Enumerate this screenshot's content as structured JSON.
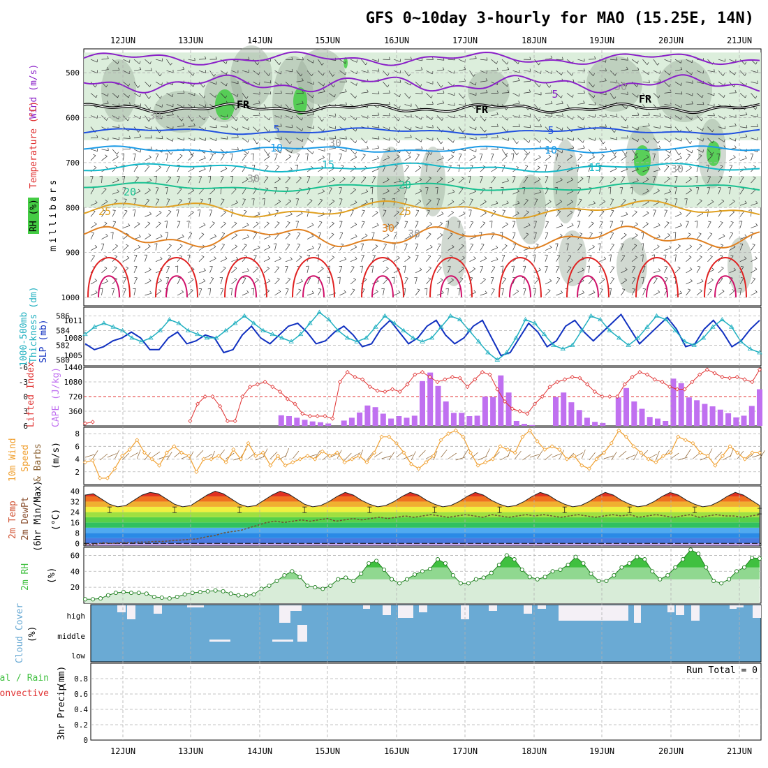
{
  "title": "GFS 0~10day 3-hourly for MAO (15.25E, 14N)",
  "dates": [
    "12JUN",
    "13JUN",
    "14JUN",
    "15JUN",
    "16JUN",
    "17JUN",
    "18JUN",
    "19JUN",
    "20JUN",
    "21JUN"
  ],
  "colors": {
    "grid": "#b0b0b0",
    "rh_fill": "#d8ecd8",
    "rh_dark": "#9aaa9a",
    "rh_green": "#44cc44",
    "t_purple": "#8a20c8",
    "t_blue5": "#2050e0",
    "t_blue10": "#1a9ae6",
    "t_cyan15": "#12b8c8",
    "t_teal20": "#18c090",
    "t_orange25": "#e0a020",
    "t_orange30": "#e08020",
    "t_red35": "#e02020",
    "slp": "#1030c0",
    "thickness": "#20b0c0",
    "lifted": "#e03030",
    "cape": "#c070f0",
    "wind10": "#f0a030",
    "cloud": "#6aaad4",
    "cloud_clear": "#f4f0f6",
    "rh2m": "#40c040"
  },
  "panels": {
    "upper": {
      "yaxis_label": "millibars",
      "ticks": [
        "500",
        "600",
        "700",
        "800",
        "900",
        "1000"
      ],
      "leg_wind": "Wind (m/s)",
      "leg_temp": "Temperature (°C)",
      "leg_rh": "RH (%)"
    },
    "slp": {
      "label_a": "Thickness (dm)",
      "label_b": "1000-500mb",
      "label_c": "SLP (mb)",
      "left_ticks": [
        "586",
        "584",
        "582",
        "580"
      ],
      "right_ticks": [
        "1011",
        "1008",
        "1005"
      ]
    },
    "cape": {
      "label_a": "Lifted Index",
      "label_b": "CAPE (J/kg)",
      "left_ticks": [
        "-6",
        "-3",
        "0",
        "3",
        "6"
      ],
      "right_ticks": [
        "1440",
        "1080",
        "720",
        "360"
      ]
    },
    "wind10": {
      "label_a": "10m Wind",
      "label_b": "Speed",
      "label_c": "& Barbs",
      "unit": "(m/s)",
      "ticks": [
        "8",
        "6",
        "4",
        "2"
      ]
    },
    "temp2m": {
      "label_a": "2m Temp",
      "label_b": "2m DewPt",
      "label_c": "(6hr Min/Max)",
      "unit": "(°C)",
      "ticks": [
        "40",
        "32",
        "24",
        "16",
        "8",
        "0"
      ]
    },
    "rh2m": {
      "label_a": "2m RH",
      "unit": "(%)",
      "ticks": [
        "60",
        "40",
        "20"
      ]
    },
    "cloud": {
      "label_a": "Cloud Cover",
      "unit": "(%)",
      "ticks": [
        "high",
        "middle",
        "low"
      ]
    },
    "precip": {
      "label_a": "3hr Precip",
      "unit": "(mm)",
      "label_total": "Total / Rain",
      "label_conv": "Convective",
      "run_total": "Run Total = 0",
      "ticks": [
        "0.8",
        "0.6",
        "0.4",
        "0.2",
        "0"
      ]
    }
  },
  "isotherm_labels": [
    {
      "text": "FR",
      "color": "#000000"
    },
    {
      "text": "FR",
      "color": "#000000"
    },
    {
      "text": "FR",
      "color": "#000000"
    },
    {
      "text": "5",
      "color": "#8a20c8"
    },
    {
      "text": "5",
      "color": "#2050e0"
    },
    {
      "text": "5",
      "color": "#2050e0"
    },
    {
      "text": "10",
      "color": "#1a9ae6"
    },
    {
      "text": "10",
      "color": "#1a9ae6"
    },
    {
      "text": "15",
      "color": "#12b8c8"
    },
    {
      "text": "15",
      "color": "#12b8c8"
    },
    {
      "text": "20",
      "color": "#18c090"
    },
    {
      "text": "20",
      "color": "#18c090"
    },
    {
      "text": "25",
      "color": "#e0a020"
    },
    {
      "text": "25",
      "color": "#e0a020"
    },
    {
      "text": "30",
      "color": "#e08020"
    },
    {
      "text": "30",
      "color": "#999999"
    },
    {
      "text": "30",
      "color": "#999999"
    },
    {
      "text": "30",
      "color": "#999999"
    },
    {
      "text": "30",
      "color": "#999999"
    },
    {
      "text": "30",
      "color": "#999999"
    },
    {
      "text": "30",
      "color": "#999999"
    }
  ],
  "chart_data": [
    {
      "type": "line",
      "name": "upper-air",
      "y_unit": "millibars",
      "ylim": [
        1000,
        450
      ],
      "isotherms_c": [
        "-5",
        "FR",
        "5",
        "10",
        "15",
        "20",
        "25",
        "30",
        "35"
      ]
    },
    {
      "type": "line",
      "name": "slp-thickness",
      "series": [
        {
          "name": "SLP (mb)",
          "ylim": [
            1003,
            1013
          ],
          "values": [
            1007,
            1006,
            1006.5,
            1007.5,
            1008,
            1009,
            1008,
            1006,
            1006,
            1008,
            1009,
            1007,
            1007.5,
            1008.5,
            1008,
            1005.5,
            1006,
            1008.5,
            1010,
            1008,
            1007,
            1008.5,
            1010,
            1010.5,
            1009,
            1007,
            1007.5,
            1009,
            1010,
            1008.5,
            1006.5,
            1007,
            1009.5,
            1011,
            1009,
            1007,
            1008,
            1010,
            1011,
            1008.5,
            1007,
            1008,
            1010,
            1011,
            1008,
            1005,
            1005.5,
            1008,
            1010.5,
            1009,
            1006.5,
            1007.5,
            1010,
            1011,
            1009,
            1007.5,
            1009,
            1010.5,
            1012,
            1009.5,
            1007,
            1008.5,
            1010,
            1011.5,
            1009.5,
            1006.5,
            1007,
            1009.5,
            1011,
            1009,
            1006.5,
            1007.5,
            1009.5,
            1011
          ]
        },
        {
          "name": "Thickness (dm)",
          "ylim": [
            579,
            587
          ],
          "values": [
            583.5,
            584.5,
            585,
            584.5,
            584,
            583,
            582.5,
            583,
            584,
            585.5,
            585,
            584,
            583.5,
            583,
            583,
            584,
            585,
            586,
            585,
            584,
            583.5,
            583,
            582.5,
            583.5,
            585,
            586.5,
            585.5,
            584,
            583,
            582.5,
            583,
            584.5,
            586,
            585,
            584,
            583,
            582.5,
            583,
            584.5,
            586,
            585.5,
            584,
            582.5,
            581,
            580,
            581,
            583,
            585.5,
            585,
            583.5,
            582,
            581.5,
            582,
            584,
            586,
            585.5,
            584,
            583,
            582,
            583,
            584.5,
            586,
            585.5,
            584,
            582.5,
            582,
            583,
            584.5,
            585.5,
            584.5,
            582.5,
            581.5,
            581
          ]
        }
      ]
    },
    {
      "type": "bar",
      "name": "cape-lifted-index",
      "series": [
        {
          "name": "CAPE (J/kg)",
          "ylim": [
            0,
            1440
          ],
          "values": [
            0,
            0,
            0,
            0,
            0,
            0,
            0,
            0,
            0,
            0,
            0,
            0,
            0,
            0,
            0,
            0,
            0,
            0,
            0,
            0,
            0,
            0,
            0,
            0,
            0,
            260,
            240,
            200,
            150,
            110,
            90,
            60,
            0,
            130,
            200,
            330,
            500,
            460,
            300,
            180,
            240,
            200,
            250,
            1100,
            1310,
            980,
            600,
            320,
            320,
            240,
            250,
            720,
            710,
            1240,
            820,
            120,
            50,
            20,
            0,
            0,
            710,
            820,
            580,
            390,
            200,
            100,
            70,
            0,
            700,
            930,
            600,
            420,
            220,
            180,
            120,
            1160,
            1050,
            700,
            630,
            540,
            480,
            400,
            310,
            210,
            250,
            490,
            900
          ]
        },
        {
          "name": "Lifted Index",
          "ylim": [
            6,
            -6
          ],
          "values": [
            5.5,
            5.2,
            null,
            null,
            null,
            null,
            null,
            null,
            null,
            null,
            null,
            null,
            null,
            null,
            5,
            1.5,
            0,
            0,
            2,
            5,
            5,
            0,
            -2,
            -2.5,
            -3,
            -2,
            -1,
            0.5,
            1.5,
            3.5,
            4,
            4,
            4,
            4.5,
            -3,
            -5,
            -4,
            -3.5,
            -2,
            -1.2,
            -1,
            -1.5,
            -1,
            -2.5,
            -4.5,
            -5,
            -4,
            -3,
            -3.5,
            -4,
            -3.8,
            -2,
            -3.5,
            -5,
            -4.5,
            -1.5,
            1,
            2.5,
            3,
            3.5,
            1.5,
            0,
            -2,
            -3,
            -3.5,
            -4,
            -3.8,
            -2.5,
            -1,
            0,
            0,
            0,
            -2.5,
            -4,
            -5,
            -4.5,
            -3.5,
            -3,
            -2,
            -1.5,
            -1.5,
            -3,
            -4.5,
            -5.5,
            -4.8,
            -4,
            -3.8,
            -4,
            -3.5,
            -3,
            -5.5
          ]
        }
      ]
    },
    {
      "type": "line",
      "name": "10m-wind-speed",
      "ylim": [
        0,
        9
      ],
      "values": [
        3.5,
        3.8,
        1,
        1,
        2.5,
        4.5,
        5.5,
        7,
        5,
        4,
        3,
        5,
        6,
        5,
        4.5,
        2,
        4,
        4,
        4.5,
        3.5,
        5.5,
        4,
        6.5,
        4.5,
        5,
        3,
        4.5,
        3,
        3.5,
        4,
        4.5,
        4,
        5.2,
        4.5,
        5,
        3.5,
        4,
        4.5,
        3.5,
        5,
        7.5,
        7.5,
        6.5,
        5,
        3.2,
        2.5,
        3.5,
        4.5,
        7,
        8,
        8.5,
        7.5,
        5,
        3,
        3.5,
        4,
        6,
        5.5,
        5,
        7.5,
        8.5,
        6.8,
        5.5,
        6,
        5.5,
        4,
        4.5,
        3,
        2.5,
        4,
        5,
        6.5,
        8.5,
        7.5,
        6,
        5,
        4,
        3.5,
        4.5,
        5,
        7.5,
        7,
        6.5,
        5,
        4.5,
        3,
        4.5,
        6,
        5,
        4,
        5,
        5
      ]
    },
    {
      "type": "area",
      "name": "2m-temp-dewpoint",
      "ylim": [
        -2,
        44
      ],
      "series": [
        {
          "name": "2m Temp",
          "values": [
            37,
            38,
            34,
            30,
            28,
            29,
            33,
            37,
            39,
            38,
            34,
            30,
            28,
            29,
            33,
            37,
            40,
            38,
            34,
            30,
            28,
            29,
            33,
            37,
            40,
            38,
            34,
            30,
            28,
            29,
            32,
            36,
            39,
            37,
            33,
            30,
            28,
            29,
            32,
            36,
            39,
            37,
            33,
            30,
            28,
            29,
            32,
            36,
            39,
            37,
            33,
            30,
            28,
            29,
            32,
            36,
            39,
            37,
            33,
            30,
            28,
            29,
            32,
            36,
            39,
            37,
            33,
            30,
            28,
            29,
            32,
            36,
            39,
            37,
            33,
            30,
            28,
            29,
            32,
            36,
            39,
            37,
            33,
            29
          ]
        },
        {
          "name": "2m DewPt",
          "values": [
            -1,
            -1,
            0.5,
            0,
            0.5,
            0.5,
            1,
            1,
            1.5,
            1.5,
            2,
            2.5,
            3,
            3.5,
            5,
            6,
            8,
            9,
            10,
            12,
            14,
            16,
            17,
            16,
            17,
            18,
            17,
            18,
            19,
            17,
            18,
            19,
            18,
            19,
            20,
            19,
            20,
            21,
            20,
            21,
            22,
            21,
            20,
            21,
            22,
            21,
            20,
            22,
            21,
            20,
            21,
            22,
            21,
            22,
            21,
            20,
            21,
            22,
            21,
            20,
            21,
            22,
            21,
            22,
            20,
            21,
            22,
            21,
            20,
            21,
            22,
            20,
            21,
            22,
            21,
            21,
            20,
            21,
            22
          ]
        }
      ]
    },
    {
      "type": "area",
      "name": "2m-rh",
      "ylim": [
        0,
        70
      ],
      "values": [
        5,
        5,
        6,
        10,
        13,
        14,
        13,
        13,
        12,
        8,
        7,
        6,
        8,
        11,
        13,
        14,
        15,
        16,
        15,
        12,
        10,
        10,
        11,
        18,
        22,
        28,
        35,
        40,
        33,
        22,
        20,
        18,
        22,
        30,
        32,
        28,
        37,
        50,
        53,
        42,
        30,
        25,
        30,
        36,
        40,
        43,
        55,
        50,
        35,
        25,
        25,
        30,
        32,
        38,
        48,
        60,
        55,
        42,
        33,
        30,
        33,
        40,
        42,
        48,
        58,
        50,
        37,
        28,
        28,
        35,
        45,
        50,
        58,
        55,
        40,
        30,
        35,
        45,
        55,
        67,
        62,
        45,
        28,
        25,
        30,
        40,
        45,
        57,
        56
      ]
    },
    {
      "type": "bar",
      "name": "cloud-cover",
      "categories": [
        "high",
        "middle",
        "low"
      ],
      "ylim": [
        0,
        100
      ]
    },
    {
      "type": "bar",
      "name": "3hr-precip",
      "ylim": [
        0,
        1
      ],
      "values": []
    }
  ]
}
